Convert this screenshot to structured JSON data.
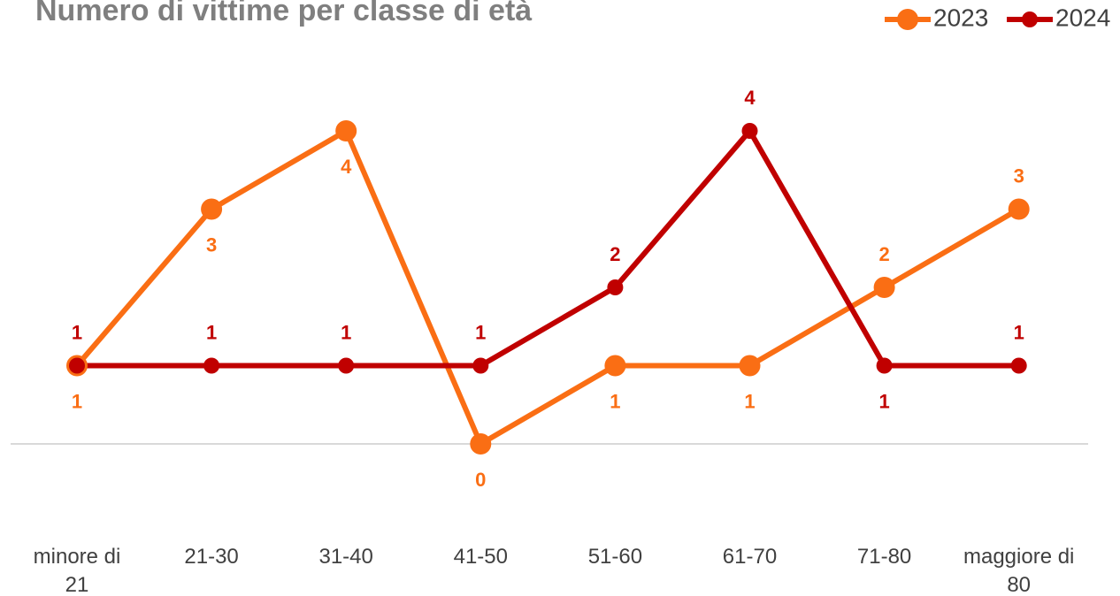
{
  "chart_data": {
    "type": "line",
    "title": "Numero di vittime per classe di età",
    "categories": [
      "minore di 21",
      "21-30",
      "31-40",
      "41-50",
      "51-60",
      "61-70",
      "71-80",
      "maggiore di 80"
    ],
    "series": [
      {
        "name": "2023",
        "color": "#fa6e14",
        "values": [
          1,
          3,
          4,
          0,
          1,
          1,
          2,
          3
        ]
      },
      {
        "name": "2024",
        "color": "#c00000",
        "values": [
          1,
          1,
          1,
          1,
          2,
          4,
          1,
          1
        ]
      }
    ],
    "ylim": [
      0,
      4
    ],
    "legend": "top-right"
  }
}
